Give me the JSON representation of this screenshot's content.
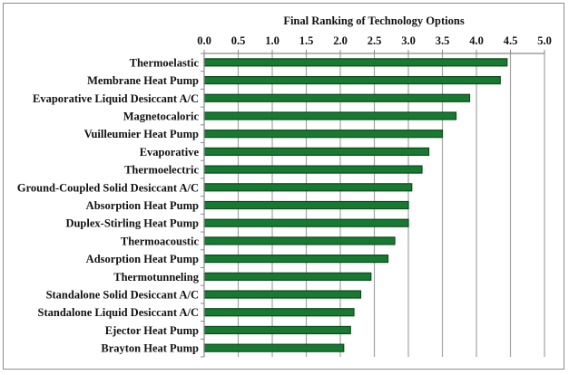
{
  "chart_data": {
    "type": "bar",
    "orientation": "horizontal",
    "title": "Final Ranking of Technology Options",
    "xlabel": "",
    "ylabel": "",
    "xlim": [
      0,
      5
    ],
    "x_ticks": [
      "0.0",
      "0.5",
      "1.0",
      "1.5",
      "2.0",
      "2.5",
      "3.0",
      "3.5",
      "4.0",
      "4.5",
      "5.0"
    ],
    "x_axis_position": "top",
    "grid": true,
    "legend": "none",
    "bar_color": "#177a30",
    "bar_edge_color": "#0b4a1c",
    "categories": [
      "Thermoelastic",
      "Membrane Heat Pump",
      "Evaporative Liquid Desiccant A/C",
      "Magnetocaloric",
      "Vuilleumier Heat Pump",
      "Evaporative",
      "Thermoelectric",
      "Ground-Coupled Solid Desiccant A/C",
      "Absorption Heat Pump",
      "Duplex-Stirling Heat Pump",
      "Thermoacoustic",
      "Adsorption Heat Pump",
      "Thermotunneling",
      "Standalone Solid Desiccant A/C",
      "Standalone Liquid Desiccant A/C",
      "Ejector Heat Pump",
      "Brayton Heat Pump"
    ],
    "values": [
      4.45,
      4.35,
      3.9,
      3.7,
      3.5,
      3.3,
      3.2,
      3.05,
      3.0,
      3.0,
      2.8,
      2.7,
      2.45,
      2.3,
      2.2,
      2.15,
      2.05
    ]
  }
}
